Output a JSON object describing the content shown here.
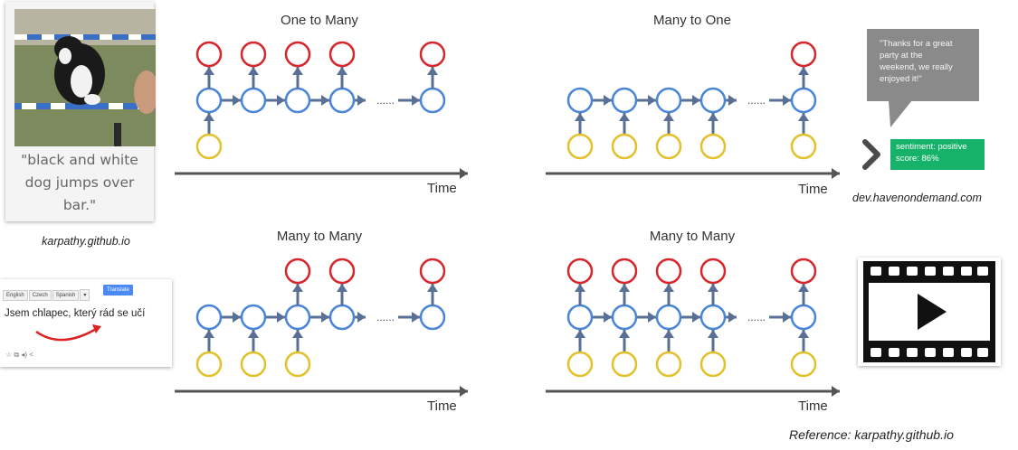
{
  "image_card": {
    "caption_lines": [
      "\"black and white",
      "dog jumps over",
      "bar.\""
    ],
    "source": "karpathy.github.io"
  },
  "translate_card": {
    "tabs": [
      "English",
      "Czech",
      "Spanish",
      "▾"
    ],
    "translate_button": "Translate",
    "sentence": "Jsem chlapec, který rád se učí",
    "footer_icons": [
      "star-icon",
      "copy-icon",
      "speaker-icon",
      "share-icon"
    ]
  },
  "sentiment_card": {
    "quote_lines": [
      "\"Thanks for a great",
      "party at the",
      "weekend, we really",
      "enjoyed it!\""
    ],
    "result_lines": [
      "sentiment: positive",
      "score: 86%"
    ],
    "source": "dev.havenondemand.com"
  },
  "video_card": {
    "icon": "video-play-icon"
  },
  "diagrams": [
    {
      "title": "One to Many",
      "time_label": "Time",
      "input_slots": [
        0
      ],
      "output_slots": [
        0,
        1,
        2,
        3,
        4
      ]
    },
    {
      "title": "Many to One",
      "time_label": "Time",
      "input_slots": [
        0,
        1,
        2,
        3,
        4
      ],
      "output_slots": [
        4
      ]
    },
    {
      "title": "Many to Many",
      "time_label": "Time",
      "input_slots": [
        0,
        1,
        2
      ],
      "output_slots": [
        2,
        3,
        4
      ]
    },
    {
      "title": "Many to Many",
      "time_label": "Time",
      "input_slots": [
        0,
        1,
        2,
        3,
        4
      ],
      "output_slots": [
        0,
        1,
        2,
        3,
        4
      ]
    }
  ],
  "dots_glyph": "......",
  "reference": "Reference: karpathy.github.io",
  "colors": {
    "input": "#e2c12a",
    "hidden": "#4a86d8",
    "output": "#d8262a",
    "arrow": "#5a6f95",
    "time_axis": "#555555"
  }
}
